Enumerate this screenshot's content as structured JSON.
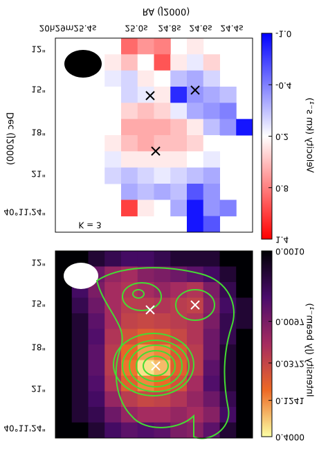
{
  "chart_data": [
    {
      "type": "heatmap",
      "xlabel": "RA (J2000)",
      "ylabel": "Dec (J2000)",
      "xticklabels": [
        "20h29m25.4s",
        "25.0s",
        "24.8s",
        "24.6s",
        "24.4s"
      ],
      "yticklabels": [
        "12\"",
        "15\"",
        "18\"",
        "21\"",
        "40°11'24\""
      ],
      "annotation": "K = 3",
      "colorbar": {
        "label": "Velocity (km s⁻¹)",
        "lim": [
          -1.0,
          1.4
        ],
        "ticks": [
          {
            "value": -1.0,
            "label": "-1.0"
          },
          -0.4,
          0.2,
          0.8,
          1.4
        ],
        "colormap": [
          "#0000ff",
          "#ffffff",
          "#ff0000"
        ],
        "log": false
      },
      "rows": [
        [
          null,
          null,
          null,
          null,
          0.9,
          0.7,
          0.8,
          null,
          0.3,
          null,
          null,
          null
        ],
        [
          null,
          null,
          null,
          0.3,
          0.5,
          0.2,
          1.0,
          0.3,
          0.1,
          0.4,
          null,
          null
        ],
        [
          null,
          null,
          null,
          0.1,
          0.0,
          0.3,
          0.2,
          -0.1,
          -0.2,
          0.0,
          null,
          null
        ],
        [
          null,
          null,
          null,
          0.2,
          0.0,
          0.1,
          0.3,
          -0.8,
          -0.3,
          -0.2,
          -0.1,
          null
        ],
        [
          null,
          null,
          null,
          null,
          0.4,
          0.5,
          0.4,
          0.1,
          -0.2,
          -0.3,
          -0.4,
          null
        ],
        [
          null,
          null,
          null,
          null,
          0.6,
          0.6,
          0.6,
          0.5,
          0.3,
          -0.1,
          -0.3,
          -0.9
        ],
        [
          null,
          null,
          null,
          0.3,
          0.5,
          0.6,
          0.5,
          0.5,
          0.4,
          0.2,
          null,
          null
        ],
        [
          null,
          null,
          null,
          0.1,
          0.3,
          0.3,
          0.3,
          0.3,
          0.2,
          0.1,
          null,
          null
        ],
        [
          null,
          null,
          null,
          0.0,
          -0.1,
          0.0,
          0.1,
          0.0,
          -0.1,
          -0.2,
          null,
          null
        ],
        [
          null,
          null,
          null,
          null,
          -0.2,
          -0.1,
          -0.2,
          -0.1,
          -0.6,
          -0.3,
          null,
          null
        ],
        [
          null,
          null,
          null,
          null,
          1.1,
          0.3,
          0.2,
          -0.2,
          -0.9,
          -0.3,
          -0.4,
          null
        ],
        [
          null,
          null,
          null,
          null,
          null,
          null,
          null,
          null,
          -0.9,
          -0.6,
          null,
          null
        ]
      ]
    },
    {
      "type": "heatmap",
      "yticklabels": [
        "12\"",
        "15\"",
        "18\"",
        "21\"",
        "40°11'24\""
      ],
      "colorbar": {
        "label": "Intensity (Jy beam⁻¹)",
        "lim": [
          0.001,
          0.4
        ],
        "ticks": [
          {
            "value": 0.001,
            "label": "0.0010"
          },
          0.0097,
          0.0372,
          0.1241,
          {
            "value": 0.4,
            "label": "0.4000"
          }
        ],
        "colormap": [
          "#000004",
          "#4a0c6b",
          "#a52c60",
          "#ed6925",
          "#fcffa4"
        ],
        "log": true
      },
      "rows": [
        [
          0.001,
          0.001,
          0.002,
          0.003,
          0.004,
          0.004,
          0.003,
          0.002,
          0.002,
          0.002,
          0.001,
          0.001
        ],
        [
          0.001,
          0.003,
          0.008,
          0.015,
          0.02,
          0.012,
          0.01,
          0.008,
          0.006,
          0.004,
          0.002,
          0.001
        ],
        [
          0.001,
          0.004,
          0.01,
          0.02,
          0.025,
          0.02,
          0.015,
          0.02,
          0.025,
          0.01,
          0.003,
          0.001
        ],
        [
          0.001,
          0.003,
          0.008,
          0.02,
          0.03,
          0.03,
          0.025,
          0.03,
          0.035,
          0.012,
          0.004,
          0.002
        ],
        [
          0.001,
          0.002,
          0.006,
          0.02,
          0.035,
          0.04,
          0.035,
          0.03,
          0.025,
          0.01,
          0.003,
          0.002
        ],
        [
          0.001,
          0.002,
          0.005,
          0.025,
          0.05,
          0.07,
          0.06,
          0.04,
          0.025,
          0.008,
          0.003,
          0.001
        ],
        [
          0.001,
          0.002,
          0.006,
          0.03,
          0.08,
          0.15,
          0.12,
          0.06,
          0.03,
          0.008,
          0.002,
          0.001
        ],
        [
          0.001,
          0.002,
          0.006,
          0.03,
          0.1,
          0.3,
          0.2,
          0.07,
          0.03,
          0.006,
          0.002,
          0.001
        ],
        [
          0.001,
          0.002,
          0.005,
          0.025,
          0.07,
          0.12,
          0.09,
          0.05,
          0.02,
          0.005,
          0.002,
          0.001
        ],
        [
          0.001,
          0.002,
          0.004,
          0.015,
          0.03,
          0.04,
          0.035,
          0.025,
          0.015,
          0.008,
          0.003,
          0.001
        ],
        [
          0.001,
          0.002,
          0.003,
          0.008,
          0.015,
          0.02,
          0.02,
          0.015,
          0.02,
          0.012,
          0.004,
          0.001
        ],
        [
          0.001,
          0.001,
          0.002,
          0.004,
          0.006,
          0.005,
          0.006,
          0.01,
          0.012,
          0.006,
          0.002,
          0.001
        ]
      ]
    }
  ]
}
